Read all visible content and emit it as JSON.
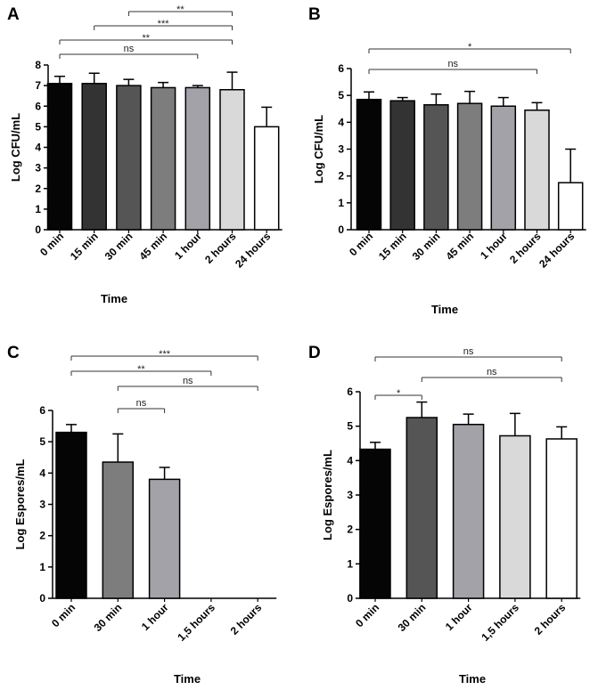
{
  "chart_data": [
    {
      "type": "bar",
      "panel": "A",
      "categories": [
        "0 min",
        "15 min",
        "30 min",
        "45 min",
        "1 hour",
        "2 hours",
        "24 hours"
      ],
      "values": [
        7.1,
        7.1,
        7.0,
        6.9,
        6.9,
        6.8,
        5.0
      ],
      "errors": [
        0.35,
        0.5,
        0.3,
        0.25,
        0.1,
        0.85,
        0.95
      ],
      "colors": [
        "#050505",
        "#333333",
        "#555555",
        "#7d7d7d",
        "#a2a2a8",
        "#d9d9d9",
        "#ffffff"
      ],
      "xlabel": "Time",
      "ylabel": "Log CFU/mL",
      "ylim": [
        0,
        8
      ],
      "yticks": [
        "0",
        "1",
        "2",
        "3",
        "4",
        "5",
        "6",
        "7",
        "8"
      ],
      "significance": [
        {
          "from": 3,
          "to": 6,
          "label": "**"
        },
        {
          "from": 2,
          "to": 6,
          "label": "***"
        },
        {
          "from": 1,
          "to": 6,
          "label": "**"
        },
        {
          "from": 1,
          "to": 5,
          "label": "ns"
        }
      ]
    },
    {
      "type": "bar",
      "panel": "B",
      "categories": [
        "0 min",
        "15 min",
        "30 min",
        "45 min",
        "1 hour",
        "2 hours",
        "24 hours"
      ],
      "values": [
        4.85,
        4.8,
        4.65,
        4.7,
        4.6,
        4.45,
        1.75
      ],
      "errors": [
        0.28,
        0.12,
        0.4,
        0.45,
        0.32,
        0.28,
        1.25
      ],
      "colors": [
        "#050505",
        "#333333",
        "#555555",
        "#7d7d7d",
        "#a2a2a8",
        "#d9d9d9",
        "#ffffff"
      ],
      "xlabel": "Time",
      "ylabel": "Log CFU/mL",
      "ylim": [
        0,
        6
      ],
      "yticks": [
        "0",
        "1",
        "2",
        "3",
        "4",
        "5",
        "6"
      ],
      "significance": [
        {
          "from": 1,
          "to": 7,
          "label": "*"
        },
        {
          "from": 1,
          "to": 6,
          "label": "ns"
        }
      ]
    },
    {
      "type": "bar",
      "panel": "C",
      "categories": [
        "0 min",
        "30 min",
        "1 hour",
        "1,5 hours",
        "2 hours"
      ],
      "values": [
        5.3,
        4.35,
        3.8,
        0,
        0
      ],
      "errors": [
        0.25,
        0.9,
        0.38,
        0,
        0
      ],
      "colors": [
        "#050505",
        "#7d7d7d",
        "#a2a2a8",
        "#d9d9d9",
        "#ffffff"
      ],
      "xlabel": "Time",
      "ylabel": "Log Espores/mL",
      "ylim": [
        0,
        6
      ],
      "yticks": [
        "0",
        "1",
        "2",
        "3",
        "4",
        "5",
        "6"
      ],
      "significance": [
        {
          "from": 1,
          "to": 5,
          "label": "***"
        },
        {
          "from": 1,
          "to": 4,
          "label": "**"
        },
        {
          "from": 2,
          "to": 5,
          "label": "ns"
        },
        {
          "from": 2,
          "to": 3,
          "label": "ns"
        }
      ]
    },
    {
      "type": "bar",
      "panel": "D",
      "categories": [
        "0 min",
        "30 min",
        "1 hour",
        "1,5 hours",
        "2 hours"
      ],
      "values": [
        4.33,
        5.25,
        5.05,
        4.72,
        4.63
      ],
      "errors": [
        0.2,
        0.45,
        0.3,
        0.65,
        0.35
      ],
      "colors": [
        "#050505",
        "#555555",
        "#a2a2a8",
        "#d9d9d9",
        "#ffffff"
      ],
      "xlabel": "Time",
      "ylabel": "Log Espores/mL",
      "ylim": [
        0,
        6
      ],
      "yticks": [
        "0",
        "1",
        "2",
        "3",
        "4",
        "5",
        "6"
      ],
      "significance": [
        {
          "from": 1,
          "to": 5,
          "label": "ns"
        },
        {
          "from": 2,
          "to": 5,
          "label": "ns"
        },
        {
          "from": 1,
          "to": 2,
          "label": "*"
        }
      ]
    }
  ]
}
